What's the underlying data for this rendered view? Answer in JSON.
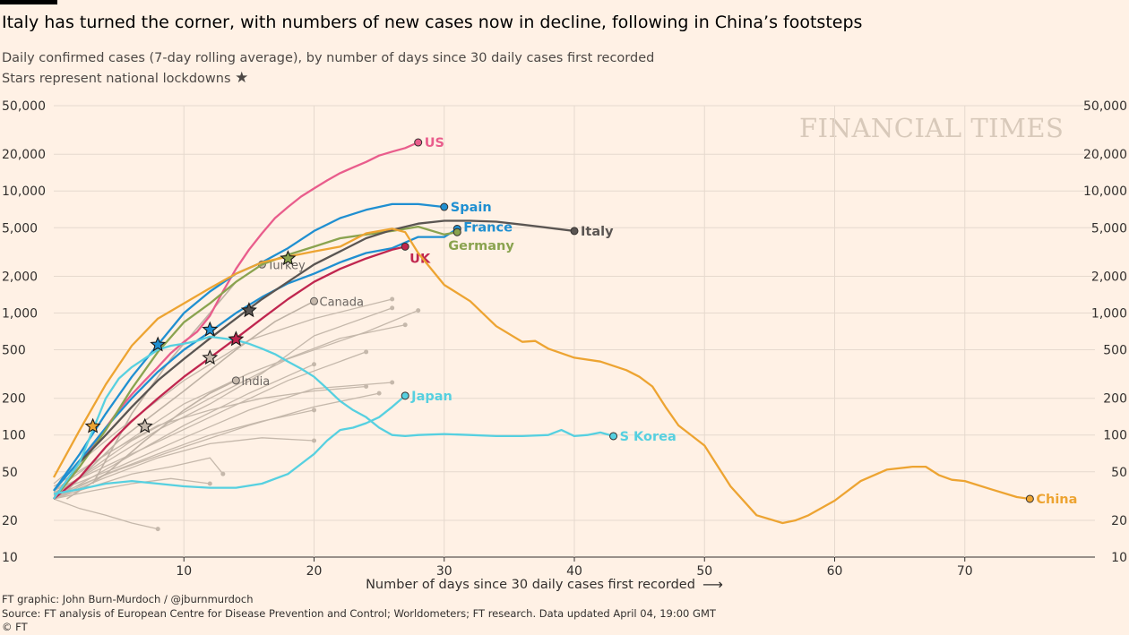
{
  "title": "Italy has turned the corner, with numbers of new cases now in decline, following in China’s footsteps",
  "subtitle1": "Daily confirmed cases (7-day rolling average), by number of days since 30 daily cases first recorded",
  "subtitle2": "Stars represent national lockdowns",
  "subtitle_star": "★",
  "watermark": "FINANCIAL TIMES",
  "footer": {
    "credit": "FT graphic: John Burn-Murdoch / @jburnmurdoch",
    "source": "Source: FT analysis of European Centre for Disease Prevention and Control; Worldometers; FT research. Data updated April 04, 19:00 GMT",
    "copyright": "© FT"
  },
  "chart_data": {
    "type": "line",
    "title": "Italy has turned the corner, with numbers of new cases now in decline, following in China’s footsteps",
    "xlabel": "Number of days since 30 daily cases first recorded",
    "xlabel_arrow": "⟶",
    "ylabel": "",
    "y_scale": "log",
    "xlim": [
      0,
      80
    ],
    "ylim": [
      10,
      50000
    ],
    "x_ticks": [
      10,
      20,
      30,
      40,
      50,
      60,
      70
    ],
    "y_ticks": [
      10,
      20,
      50,
      100,
      200,
      500,
      1000,
      2000,
      5000,
      10000,
      20000,
      50000
    ],
    "y_tick_labels": [
      "10",
      "20",
      "50",
      "100",
      "200",
      "500",
      "1,000",
      "2,000",
      "5,000",
      "10,000",
      "20,000",
      "50,000"
    ],
    "grid": true,
    "colors": {
      "us": "#e95d8c",
      "spain": "#1f8fd1",
      "france": "#1f8fd1",
      "germany": "#8aa34f",
      "italy": "#5a5552",
      "uk": "#c0264f",
      "china": "#eda432",
      "japan": "#56d0e0",
      "skorea": "#56d0e0",
      "other": "#c5b8ab"
    },
    "series": [
      {
        "name": "US",
        "key": "us",
        "label_dx": 7,
        "label_dy": 0,
        "x": [
          0,
          1,
          2,
          3,
          4,
          5,
          6,
          7,
          8,
          9,
          10,
          11,
          12,
          13,
          14,
          15,
          16,
          17,
          18,
          19,
          20,
          21,
          22,
          23,
          24,
          25,
          26,
          27,
          28
        ],
        "y": [
          30,
          42,
          60,
          82,
          115,
          160,
          215,
          280,
          360,
          470,
          580,
          700,
          950,
          1500,
          2300,
          3300,
          4500,
          6000,
          7400,
          9000,
          10500,
          12200,
          14000,
          15600,
          17300,
          19500,
          21000,
          22500,
          25000
        ]
      },
      {
        "name": "Spain",
        "key": "spain",
        "label_dx": 7,
        "label_dy": 0,
        "x": [
          0,
          2,
          4,
          6,
          8,
          10,
          12,
          14,
          16,
          18,
          20,
          22,
          24,
          26,
          28,
          30
        ],
        "y": [
          35,
          70,
          150,
          300,
          550,
          1000,
          1500,
          2100,
          2600,
          3400,
          4700,
          6000,
          7000,
          7800,
          7800,
          7400
        ]
      },
      {
        "name": "France",
        "key": "france",
        "label_dx": 7,
        "label_dy": -2,
        "x": [
          0,
          2,
          4,
          6,
          8,
          10,
          12,
          14,
          16,
          18,
          20,
          22,
          24,
          26,
          28,
          30,
          31
        ],
        "y": [
          35,
          62,
          115,
          200,
          330,
          500,
          700,
          1000,
          1350,
          1750,
          2100,
          2600,
          3100,
          3400,
          4200,
          4200,
          4900
        ]
      },
      {
        "name": "Germany",
        "key": "germany",
        "label_dx": -10,
        "label_dy": 15,
        "x": [
          0,
          2,
          4,
          6,
          8,
          10,
          12,
          14,
          16,
          18,
          20,
          22,
          24,
          26,
          28,
          30,
          31
        ],
        "y": [
          30,
          55,
          110,
          240,
          480,
          840,
          1200,
          1800,
          2500,
          3000,
          3500,
          4100,
          4400,
          4700,
          5100,
          4400,
          4600
        ]
      },
      {
        "name": "Italy",
        "key": "italy",
        "label_dx": 7,
        "label_dy": 0,
        "x": [
          0,
          2,
          4,
          6,
          8,
          10,
          12,
          14,
          16,
          18,
          20,
          22,
          24,
          26,
          28,
          30,
          32,
          34,
          36,
          38,
          40
        ],
        "y": [
          30,
          60,
          100,
          170,
          280,
          420,
          620,
          900,
          1300,
          1800,
          2500,
          3200,
          4100,
          4800,
          5400,
          5700,
          5700,
          5600,
          5300,
          5000,
          4700
        ]
      },
      {
        "name": "UK",
        "key": "uk",
        "label_dx": 5,
        "label_dy": 13,
        "x": [
          0,
          2,
          4,
          6,
          8,
          10,
          12,
          14,
          16,
          18,
          20,
          22,
          24,
          26,
          27
        ],
        "y": [
          30,
          45,
          80,
          130,
          200,
          300,
          430,
          620,
          900,
          1300,
          1800,
          2300,
          2800,
          3300,
          3500
        ]
      },
      {
        "name": "China",
        "key": "china",
        "label_dx": 7,
        "label_dy": 0,
        "x": [
          0,
          2,
          4,
          6,
          8,
          10,
          12,
          14,
          16,
          18,
          20,
          22,
          24,
          26,
          27,
          28,
          30,
          32,
          34,
          36,
          37,
          38,
          40,
          42,
          44,
          45,
          46,
          47,
          48,
          50,
          52,
          54,
          56,
          57,
          58,
          60,
          62,
          64,
          66,
          67,
          68,
          69,
          70,
          72,
          74,
          75
        ],
        "y": [
          45,
          110,
          260,
          540,
          900,
          1200,
          1600,
          2100,
          2600,
          2900,
          3200,
          3500,
          4500,
          4900,
          4600,
          3100,
          1700,
          1250,
          780,
          580,
          590,
          510,
          430,
          400,
          340,
          300,
          250,
          170,
          120,
          82,
          38,
          22,
          19,
          20,
          22,
          29,
          42,
          52,
          55,
          55,
          47,
          43,
          42,
          36,
          31,
          30
        ]
      },
      {
        "name": "Japan",
        "key": "japan",
        "label_dx": 7,
        "label_dy": 0,
        "x": [
          0,
          2,
          4,
          6,
          8,
          10,
          12,
          14,
          16,
          18,
          19,
          20,
          21,
          22,
          23,
          24,
          25,
          26,
          27
        ],
        "y": [
          33,
          36,
          40,
          42,
          40,
          38,
          37,
          37,
          40,
          48,
          58,
          70,
          90,
          110,
          115,
          125,
          140,
          170,
          210
        ]
      },
      {
        "name": "S Korea",
        "key": "skorea",
        "label_dx": 7,
        "label_dy": 0,
        "x": [
          0,
          2,
          4,
          5,
          6,
          8,
          9,
          10,
          11,
          12,
          13,
          14,
          15,
          16,
          17,
          18,
          19,
          20,
          21,
          22,
          23,
          24,
          25,
          26,
          27,
          28,
          30,
          32,
          34,
          36,
          38,
          39,
          40,
          41,
          42,
          43
        ],
        "y": [
          30,
          60,
          200,
          290,
          360,
          500,
          540,
          560,
          590,
          640,
          620,
          600,
          560,
          510,
          460,
          400,
          350,
          300,
          240,
          190,
          160,
          140,
          115,
          100,
          98,
          100,
          102,
          100,
          98,
          98,
          100,
          110,
          98,
          100,
          105,
          98
        ]
      }
    ],
    "other_series": [
      {
        "name": "Turkey",
        "x": [
          3,
          6,
          9,
          12,
          14,
          16
        ],
        "y": [
          40,
          150,
          420,
          1000,
          1800,
          2500
        ]
      },
      {
        "name": "Canada",
        "x": [
          1,
          5,
          10,
          14,
          17,
          20
        ],
        "y": [
          35,
          90,
          230,
          500,
          850,
          1250
        ]
      },
      {
        "name": "India",
        "x": [
          1,
          4,
          7,
          10,
          12,
          14
        ],
        "y": [
          30,
          48,
          90,
          160,
          220,
          280
        ]
      }
    ],
    "background_lines": [
      {
        "x": [
          0,
          5,
          10,
          15,
          20,
          26
        ],
        "y": [
          40,
          110,
          280,
          600,
          900,
          1300
        ]
      },
      {
        "x": [
          0,
          6,
          12,
          18,
          24,
          28
        ],
        "y": [
          32,
          90,
          200,
          420,
          700,
          1050
        ]
      },
      {
        "x": [
          0,
          5,
          10,
          15,
          22,
          27
        ],
        "y": [
          38,
          80,
          180,
          320,
          620,
          800
        ]
      },
      {
        "x": [
          0,
          6,
          12,
          18,
          24
        ],
        "y": [
          35,
          70,
          140,
          280,
          480
        ]
      },
      {
        "x": [
          0,
          5,
          10,
          15,
          20
        ],
        "y": [
          30,
          60,
          120,
          220,
          380
        ]
      },
      {
        "x": [
          0,
          5,
          10,
          15,
          20,
          26
        ],
        "y": [
          34,
          55,
          95,
          160,
          240,
          270
        ]
      },
      {
        "x": [
          0,
          5,
          10,
          15,
          20,
          25
        ],
        "y": [
          32,
          52,
          80,
          120,
          170,
          220
        ]
      },
      {
        "x": [
          0,
          4,
          8,
          12,
          16,
          20
        ],
        "y": [
          30,
          48,
          70,
          100,
          130,
          160
        ]
      },
      {
        "x": [
          0,
          4,
          8,
          12,
          16,
          20
        ],
        "y": [
          30,
          45,
          65,
          85,
          95,
          90
        ]
      },
      {
        "x": [
          0,
          3,
          6,
          9,
          12,
          13
        ],
        "y": [
          30,
          38,
          48,
          55,
          65,
          48
        ]
      },
      {
        "x": [
          0,
          3,
          6,
          9,
          12
        ],
        "y": [
          30,
          35,
          40,
          44,
          40
        ]
      },
      {
        "x": [
          0,
          2,
          4,
          6,
          8
        ],
        "y": [
          30,
          25,
          22,
          19,
          17
        ]
      },
      {
        "x": [
          0,
          4,
          8,
          12,
          16,
          20,
          24
        ],
        "y": [
          35,
          70,
          120,
          160,
          200,
          230,
          250
        ]
      },
      {
        "x": [
          0,
          4,
          8,
          12,
          16,
          20,
          26
        ],
        "y": [
          33,
          60,
          110,
          180,
          320,
          650,
          1100
        ]
      }
    ],
    "stars": [
      {
        "key": "china",
        "x": 3,
        "y": 118
      },
      {
        "key": "spain",
        "x": 8,
        "y": 550
      },
      {
        "key": "france",
        "x": 12,
        "y": 730
      },
      {
        "key": "germany",
        "x": 18,
        "y": 2800
      },
      {
        "key": "italy",
        "x": 15,
        "y": 1050
      },
      {
        "key": "uk",
        "x": 14,
        "y": 610
      },
      {
        "key": "other",
        "x": 7,
        "y": 118
      },
      {
        "key": "other",
        "x": 12,
        "y": 430
      }
    ]
  }
}
